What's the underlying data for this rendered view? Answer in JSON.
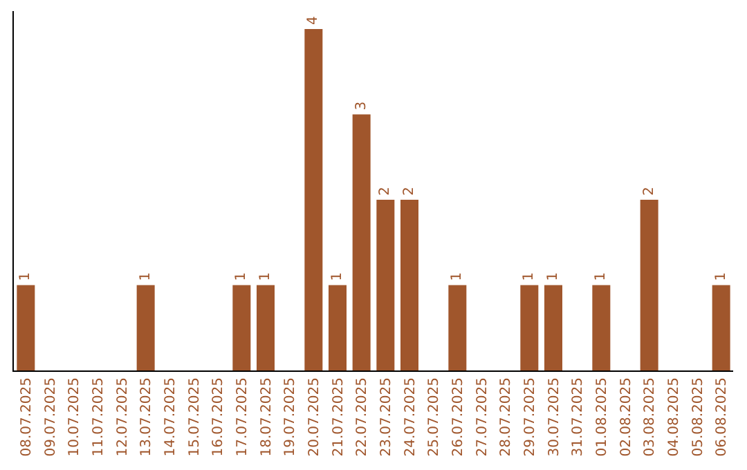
{
  "chart_data": {
    "type": "bar",
    "categories": [
      "08.07.2025",
      "09.07.2025",
      "10.07.2025",
      "11.07.2025",
      "12.07.2025",
      "13.07.2025",
      "14.07.2025",
      "15.07.2025",
      "16.07.2025",
      "17.07.2025",
      "18.07.2025",
      "19.07.2025",
      "20.07.2025",
      "21.07.2025",
      "22.07.2025",
      "23.07.2025",
      "24.07.2025",
      "25.07.2025",
      "26.07.2025",
      "27.07.2025",
      "28.07.2025",
      "29.07.2025",
      "30.07.2025",
      "31.07.2025",
      "01.08.2025",
      "02.08.2025",
      "03.08.2025",
      "04.08.2025",
      "05.08.2025",
      "06.08.2025"
    ],
    "values": [
      1,
      0,
      0,
      0,
      0,
      1,
      0,
      0,
      0,
      1,
      1,
      0,
      4,
      1,
      3,
      2,
      2,
      0,
      1,
      0,
      0,
      1,
      1,
      0,
      1,
      0,
      2,
      0,
      0,
      1
    ],
    "value_labels": [
      "1",
      null,
      null,
      null,
      null,
      "1",
      null,
      null,
      null,
      "1",
      "1",
      null,
      "4",
      "1",
      "3",
      "2",
      "2",
      null,
      "1",
      null,
      null,
      "1",
      "1",
      null,
      "1",
      null,
      "2",
      null,
      null,
      "1"
    ],
    "color": "#a0562c",
    "grid": false,
    "legend": false,
    "tick_labels": "x"
  }
}
